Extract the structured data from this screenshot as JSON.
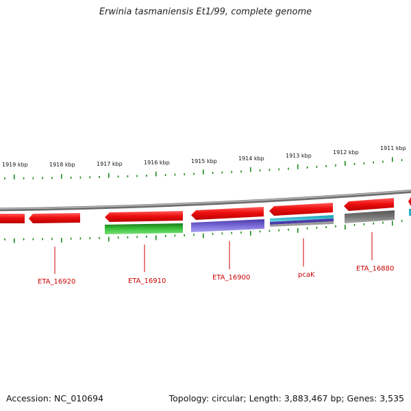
{
  "title": "Erwinia tasmaniensis Et1/99, complete genome",
  "footer": {
    "accession": "Accession: NC_010694",
    "summary": "Topology: circular; Length: 3,883,467 bp; Genes: 3,535"
  },
  "scale_labels": [
    "1919 kbp",
    "1918 kbp",
    "1917 kbp",
    "1916 kbp",
    "1915 kbp",
    "1914 kbp",
    "1913 kbp",
    "1912 kbp",
    "1911 kbp"
  ],
  "gene_labels": [
    "ETA_16920",
    "ETA_16910",
    "ETA_16900",
    "pcaK",
    "ETA_16880"
  ],
  "colors": {
    "backbone": "#8c8c8c",
    "forward_gene": "#ee1111",
    "ticks": "#1a8a1a",
    "label_line": "#cc0000",
    "track_green": "#2aa52a",
    "track_purple": "#6a5acd",
    "track_cyan": "#20b2c8",
    "track_gray": "#666666"
  }
}
